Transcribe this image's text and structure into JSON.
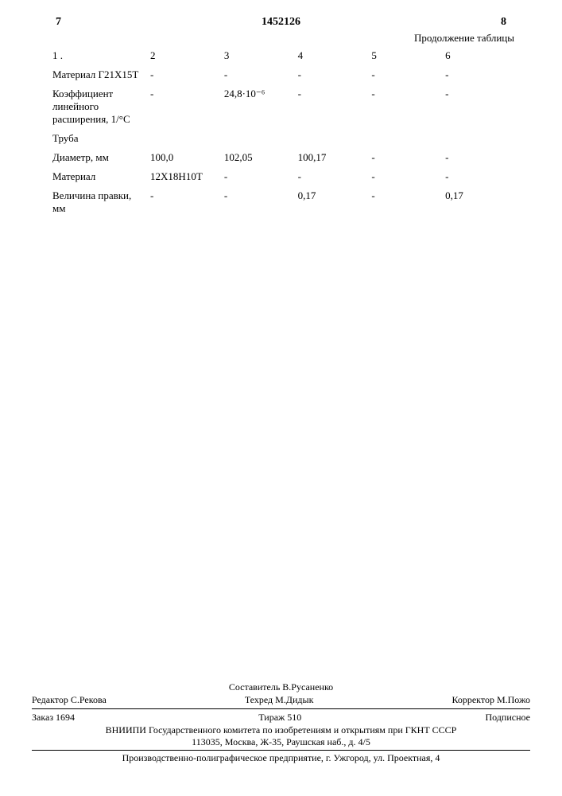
{
  "header": {
    "left_num": "7",
    "doc_number": "1452126",
    "right_num": "8",
    "continuation": "Продолжение таблицы"
  },
  "table": {
    "columns": [
      "1 .",
      "2",
      "3",
      "4",
      "5",
      "6"
    ],
    "rows": [
      {
        "label": "Материал Г21Х15Т",
        "values": [
          "-",
          "-",
          "-",
          "-",
          "-"
        ]
      },
      {
        "label": "Коэффициент линейного расширения, 1/°С",
        "values": [
          "-",
          "24,8·10⁻⁶",
          "-",
          "-",
          "-"
        ]
      },
      {
        "label_section": "Труба"
      },
      {
        "label": "Диаметр, мм",
        "values": [
          "100,0",
          "102,05",
          "100,17",
          "-",
          "-"
        ]
      },
      {
        "label": "Материал",
        "values": [
          "12Х18Н10Т",
          "-",
          "-",
          "-",
          "-"
        ]
      },
      {
        "label": "Величина правки, мм",
        "values": [
          "-",
          "-",
          "0,17",
          "-",
          "0,17"
        ]
      }
    ]
  },
  "footer": {
    "compiler_label": "Составитель",
    "compiler": "В.Русаненко",
    "editor_label": "Редактор",
    "editor": "С.Рекова",
    "tech_label": "Техред",
    "tech": "М.Дидык",
    "corrector_label": "Корректор",
    "corrector": "М.Пожо",
    "order": "Заказ 1694",
    "tirazh": "Тираж 510",
    "subscr": "Подписное",
    "committee": "ВНИИПИ Государственного комитета по изобретениям и открытиям при ГКНТ СССР",
    "address": "113035, Москва, Ж-35, Раушская наб., д. 4/5",
    "print": "Производственно-полиграфическое предприятие, г. Ужгород, ул. Проектная, 4"
  }
}
